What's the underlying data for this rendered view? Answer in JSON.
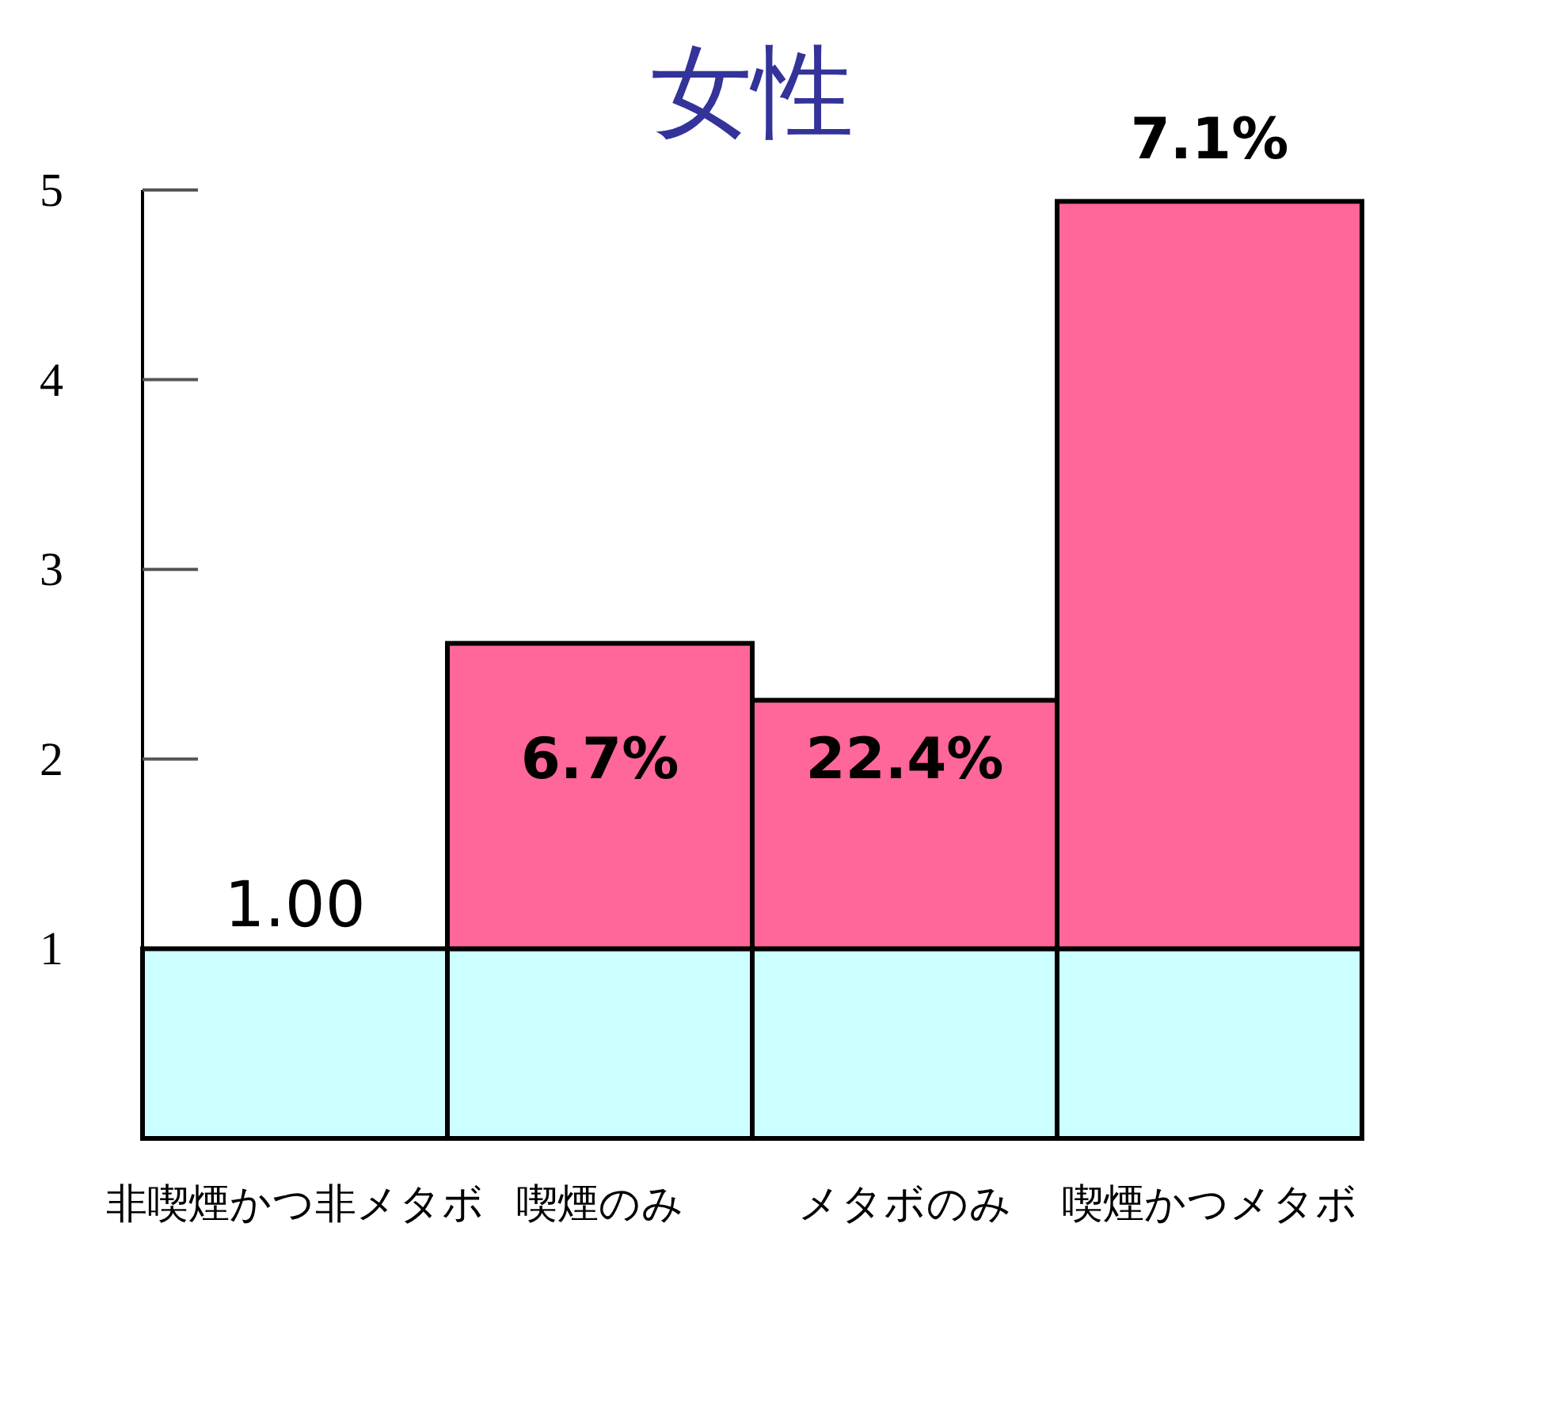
{
  "chart_data": {
    "type": "bar",
    "title": "女性",
    "stacked": true,
    "categories": [
      "非喫煙かつ非メタボ",
      "喫煙のみ",
      "メタボのみ",
      "喫煙かつメタボ"
    ],
    "series": [
      {
        "color": "#ccffff",
        "values": [
          1.0,
          1,
          1,
          1
        ],
        "value_labels": [
          "1.00",
          null,
          null,
          null
        ]
      },
      {
        "color": "#ff6699",
        "values": [
          null,
          1.61,
          1.31,
          3.94
        ]
      }
    ],
    "ylim": [
      0,
      5
    ],
    "yticks": [
      1,
      2,
      3,
      4,
      5
    ],
    "annotations": [
      "6.7%",
      "22.4%",
      "7.1%"
    ]
  }
}
